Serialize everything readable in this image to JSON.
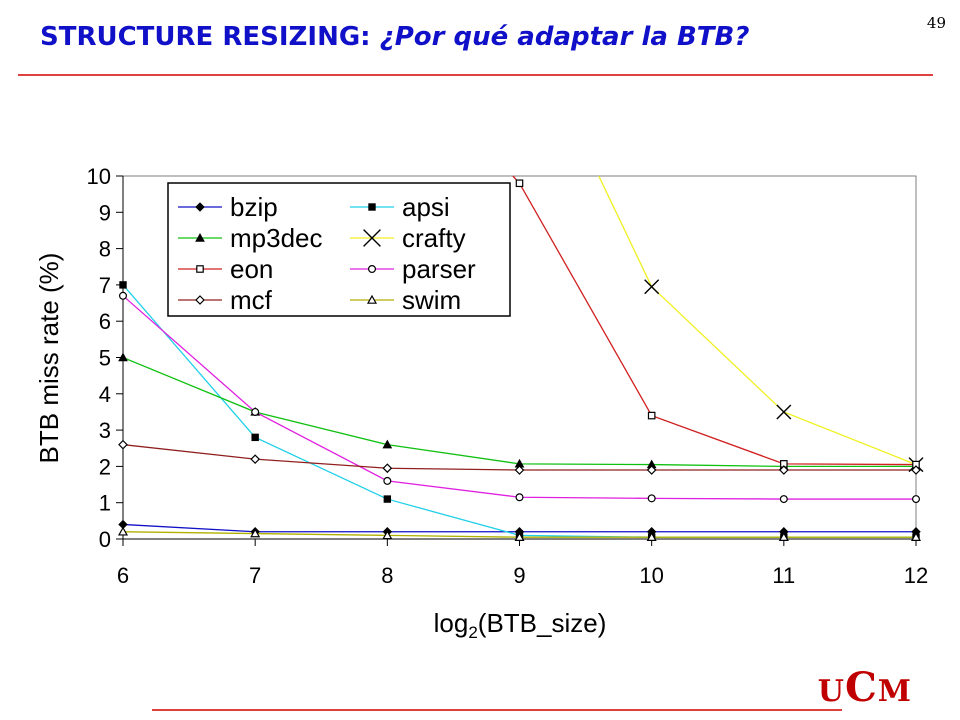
{
  "page_number": "49",
  "title": {
    "main": "STRUCTURE RESIZING: ",
    "sub": "¿Por qué adaptar la BTB?"
  },
  "logo": {
    "u1": "U",
    "c": "C",
    "m": "M"
  },
  "chart_data": {
    "type": "line",
    "title": "",
    "xlabel_parts": {
      "pre": "log",
      "sub": "2",
      "post": "(BTB_size)"
    },
    "ylabel": "BTB miss rate (%)",
    "x": [
      6,
      7,
      8,
      9,
      10,
      11,
      12
    ],
    "xlim": [
      6,
      12
    ],
    "ylim": [
      0,
      10
    ],
    "x_ticks": [
      "6",
      "7",
      "8",
      "9",
      "10",
      "11",
      "12"
    ],
    "y_ticks": [
      "0",
      "1",
      "2",
      "3",
      "4",
      "5",
      "6",
      "7",
      "8",
      "9",
      "10"
    ],
    "grid": false,
    "legend_position": "top-left",
    "series": [
      {
        "name": "bzip",
        "color": "#1010c8",
        "marker": "diamond-filled",
        "values": [
          0.4,
          0.2,
          0.2,
          0.2,
          0.2,
          0.2,
          0.2
        ]
      },
      {
        "name": "apsi",
        "color": "#20d0e8",
        "marker": "square-filled",
        "values": [
          7.0,
          2.8,
          1.1,
          0.1,
          0.05,
          0.05,
          0.05
        ]
      },
      {
        "name": "mp3dec",
        "color": "#10c010",
        "marker": "triangle-filled",
        "values": [
          5.0,
          3.5,
          2.6,
          2.07,
          2.05,
          2.0,
          2.0
        ]
      },
      {
        "name": "crafty",
        "color": "#f0f020",
        "marker": "x",
        "values": [
          null,
          null,
          null,
          null,
          6.95,
          3.5,
          2.05
        ]
      },
      {
        "name": "eon",
        "color": "#d02020",
        "marker": "square-open",
        "values": [
          null,
          null,
          null,
          9.8,
          3.4,
          2.07,
          2.05
        ]
      },
      {
        "name": "parser",
        "color": "#e020e0",
        "marker": "circle-open",
        "values": [
          6.7,
          3.5,
          1.6,
          1.15,
          1.12,
          1.1,
          1.1
        ]
      },
      {
        "name": "mcf",
        "color": "#902020",
        "marker": "diamond-open",
        "values": [
          2.6,
          2.2,
          1.95,
          1.9,
          1.9,
          1.9,
          1.9
        ]
      },
      {
        "name": "swim",
        "color": "#b0b000",
        "marker": "triangle-open",
        "values": [
          0.2,
          0.15,
          0.1,
          0.05,
          0.05,
          0.05,
          0.05
        ]
      }
    ],
    "offscale_segments": [
      {
        "series": "eon",
        "from": [
          8.95,
          10
        ],
        "to": [
          9,
          9.8
        ]
      },
      {
        "series": "crafty",
        "from": [
          9.6,
          10
        ],
        "to": [
          10,
          6.95
        ]
      }
    ]
  }
}
